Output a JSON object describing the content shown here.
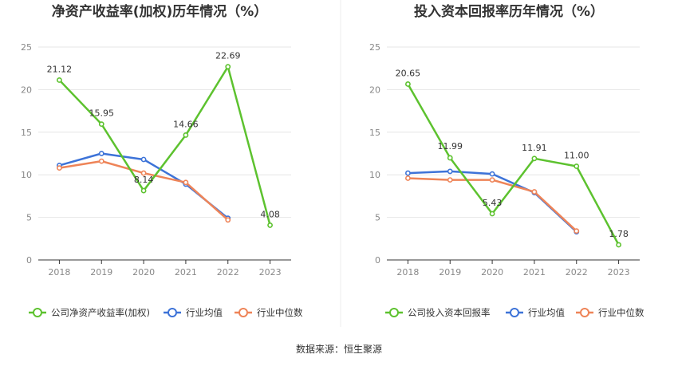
{
  "source_label": "数据来源：恒生聚源",
  "chart_data": [
    {
      "type": "line",
      "title": "净资产收益率(加权)历年情况（%）",
      "categories": [
        "2018",
        "2019",
        "2020",
        "2021",
        "2022",
        "2023"
      ],
      "ylim": [
        0,
        25
      ],
      "yticks": [
        "0",
        "5",
        "10",
        "15",
        "20",
        "25"
      ],
      "grid": true,
      "legend_position": "bottom",
      "series": [
        {
          "name": "公司净资产收益率(加权)",
          "color": "#5dc22f",
          "values": [
            21.12,
            15.95,
            8.14,
            14.66,
            22.69,
            4.08
          ],
          "labels": [
            "21.12",
            "15.95",
            "8.14",
            "14.66",
            "22.69",
            "4.08"
          ]
        },
        {
          "name": "行业均值",
          "color": "#3d73d8",
          "values": [
            11.1,
            12.5,
            11.8,
            8.9,
            4.9,
            null
          ]
        },
        {
          "name": "行业中位数",
          "color": "#ee8458",
          "values": [
            10.8,
            11.6,
            10.2,
            9.1,
            4.7,
            null
          ]
        }
      ]
    },
    {
      "type": "line",
      "title": "投入资本回报率历年情况（%）",
      "categories": [
        "2018",
        "2019",
        "2020",
        "2021",
        "2022",
        "2023"
      ],
      "ylim": [
        0,
        25
      ],
      "yticks": [
        "0",
        "5",
        "10",
        "15",
        "20",
        "25"
      ],
      "grid": true,
      "legend_position": "bottom",
      "series": [
        {
          "name": "公司投入资本回报率",
          "color": "#5dc22f",
          "values": [
            20.65,
            11.99,
            5.43,
            11.91,
            11.0,
            1.78
          ],
          "labels": [
            "20.65",
            "11.99",
            "5.43",
            "11.91",
            "11.00",
            "1.78"
          ]
        },
        {
          "name": "行业均值",
          "color": "#3d73d8",
          "values": [
            10.2,
            10.4,
            10.1,
            7.9,
            3.3,
            null
          ]
        },
        {
          "name": "行业中位数",
          "color": "#ee8458",
          "values": [
            9.6,
            9.4,
            9.4,
            8.0,
            3.4,
            null
          ]
        }
      ]
    }
  ]
}
